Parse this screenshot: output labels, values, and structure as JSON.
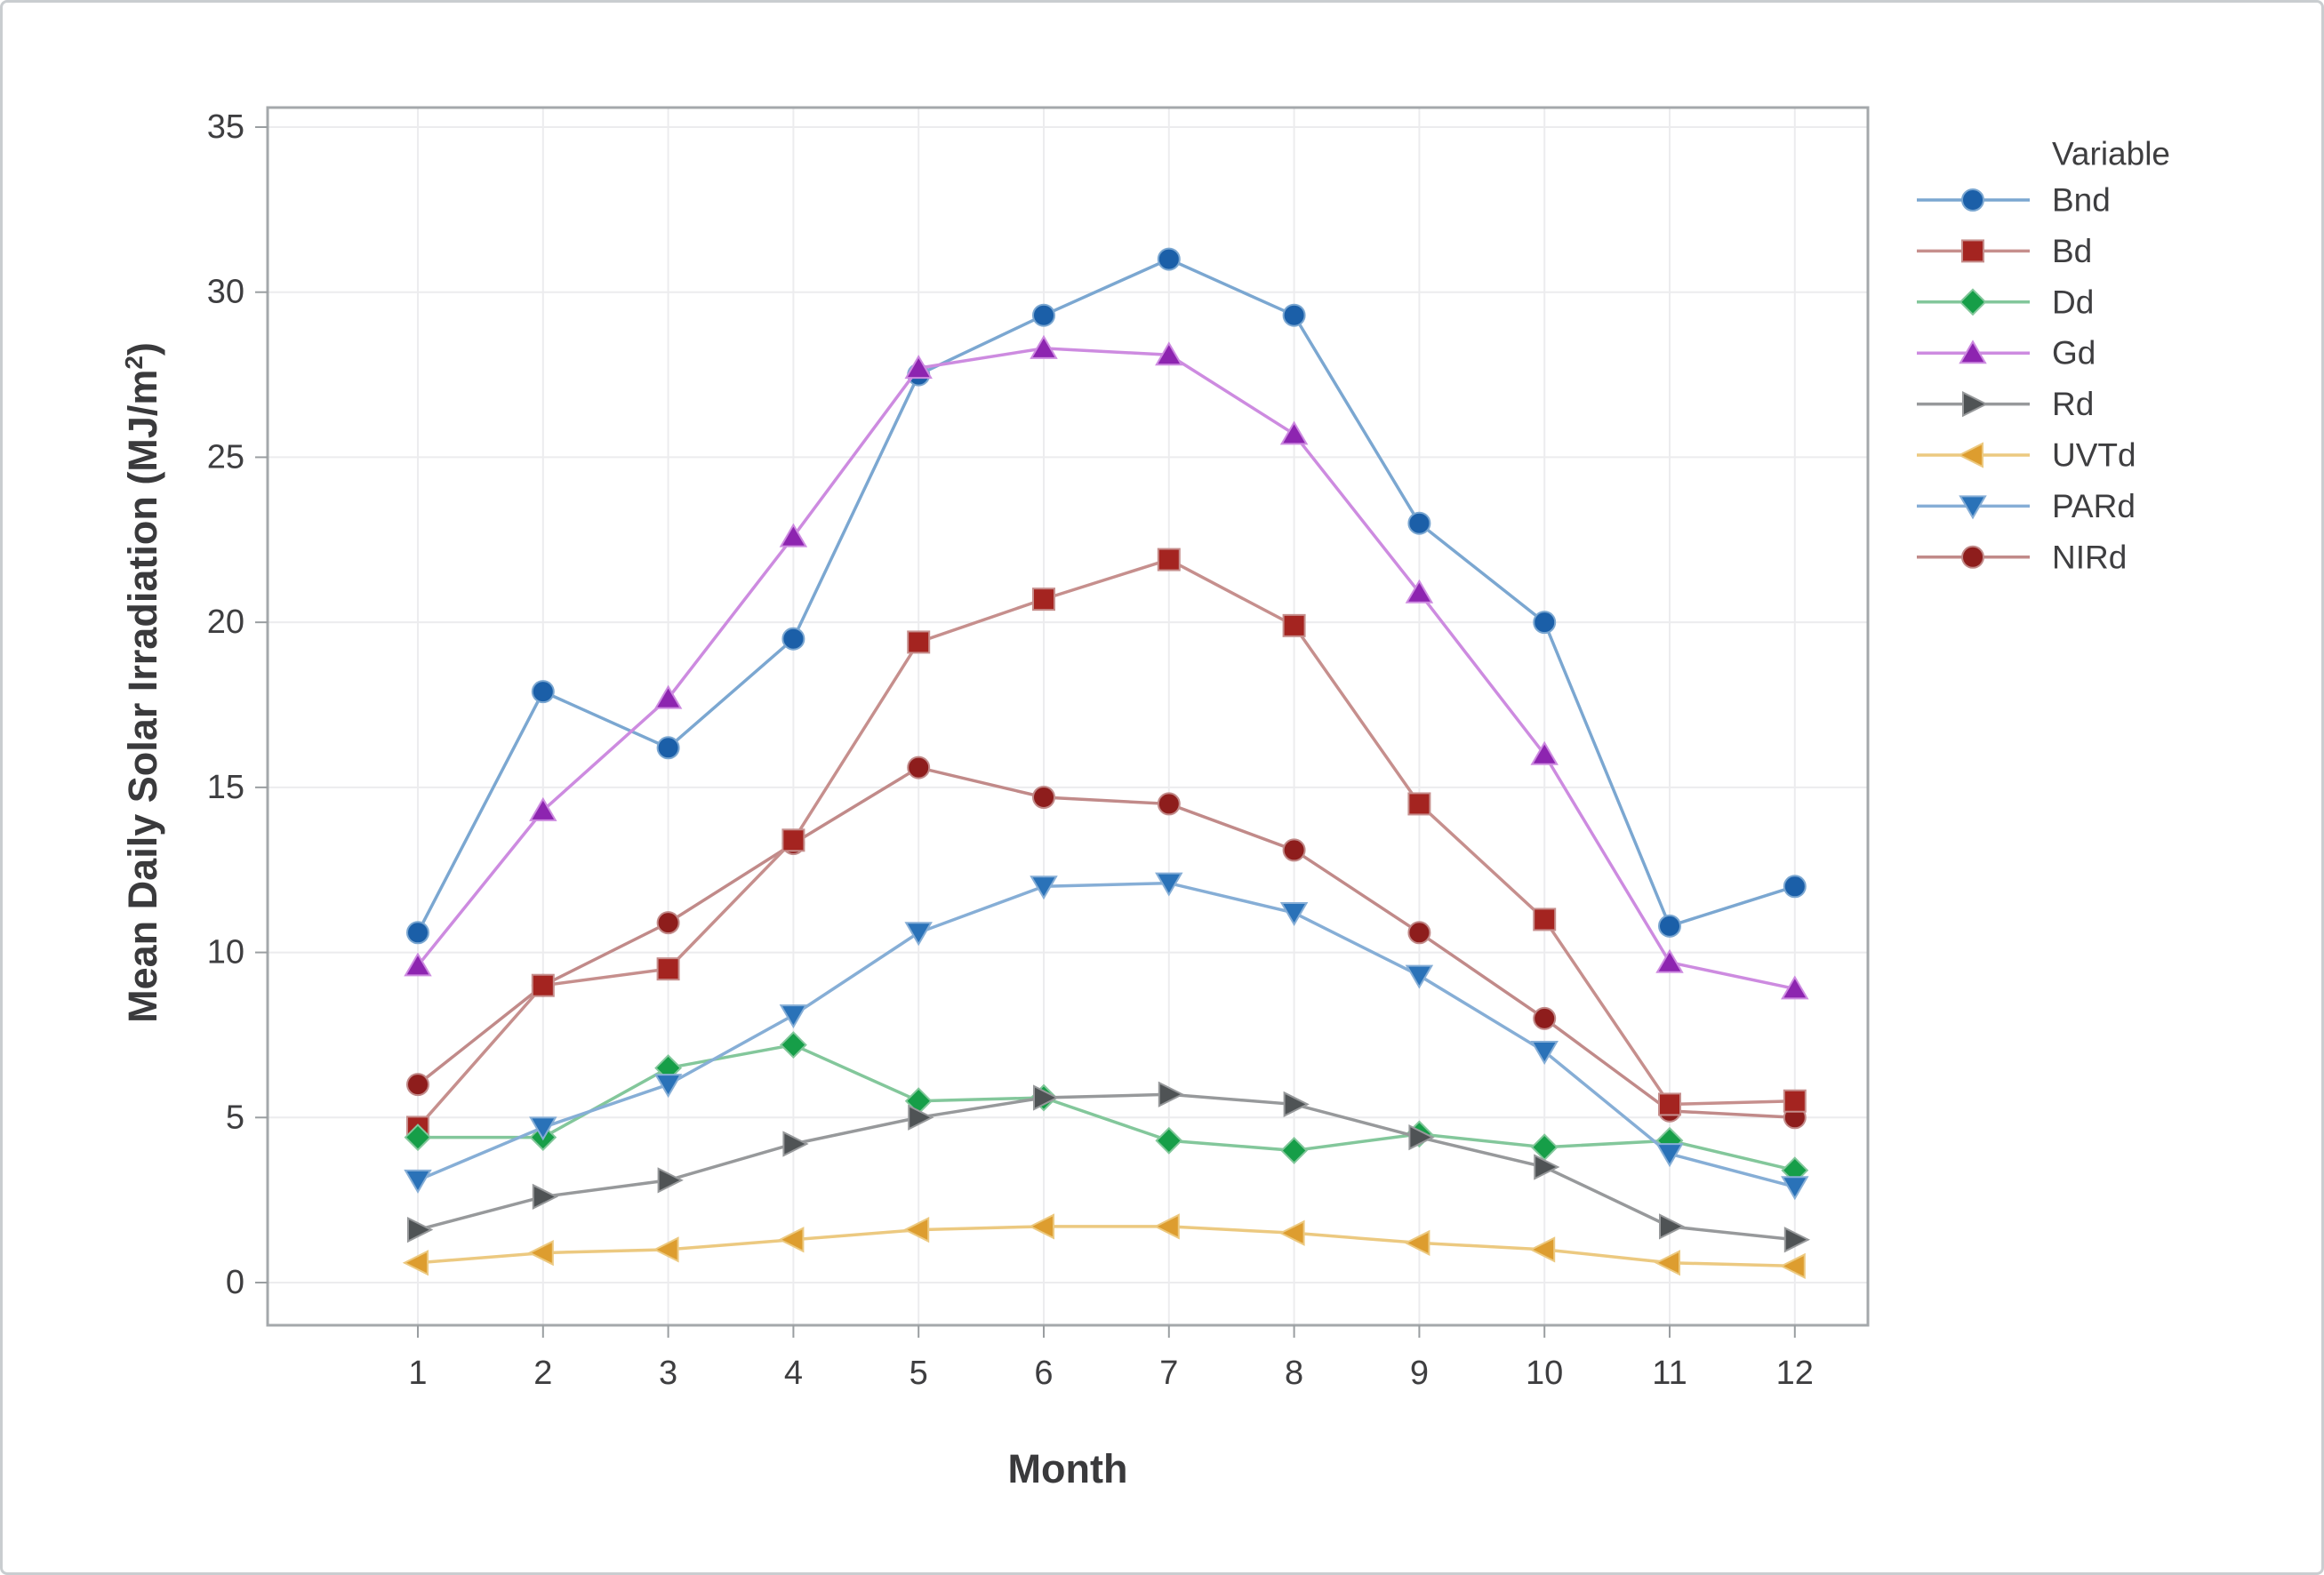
{
  "page": {
    "background": "#ffffff",
    "border_color": "#c9cdd0",
    "text_color": "#3e3e40",
    "grid_color": "#ececee",
    "frame_color": "#a4a8ab",
    "tick_color": "#9a9ea1"
  },
  "chart_data": {
    "type": "line",
    "title": "",
    "xlabel": "Month",
    "ylabel_main": "Mean Daily Solar Irradiation (MJ/m",
    "ylabel_sup": "2",
    "ylabel_suffix": ")",
    "legend_title": "Variable",
    "legend_position": "right",
    "grid": true,
    "x": [
      1,
      2,
      3,
      4,
      5,
      6,
      7,
      8,
      9,
      10,
      11,
      12
    ],
    "xlim": [
      1,
      12
    ],
    "ylim": [
      0,
      35
    ],
    "yticks": [
      0,
      5,
      10,
      15,
      20,
      25,
      30,
      35
    ],
    "series": [
      {
        "name": "Bnd",
        "marker": "circle",
        "color": "#1b5fa8",
        "line_color": "#7ba7d1",
        "values": [
          10.6,
          17.9,
          16.2,
          19.5,
          27.5,
          29.3,
          31.0,
          29.3,
          23.0,
          20.0,
          10.8,
          12.0
        ]
      },
      {
        "name": "Bd",
        "marker": "square",
        "color": "#a42420",
        "line_color": "#c68f8d",
        "values": [
          4.7,
          9.0,
          9.5,
          13.4,
          19.4,
          20.7,
          21.9,
          19.9,
          14.5,
          11.0,
          5.4,
          5.5
        ]
      },
      {
        "name": "Dd",
        "marker": "diamond",
        "color": "#169e48",
        "line_color": "#83c79b",
        "values": [
          4.4,
          4.4,
          6.5,
          7.2,
          5.5,
          5.6,
          4.3,
          4.0,
          4.5,
          4.1,
          4.3,
          3.4
        ]
      },
      {
        "name": "Gd",
        "marker": "triangle-up",
        "color": "#8d24b0",
        "line_color": "#cd8be0",
        "values": [
          9.6,
          14.3,
          17.7,
          22.6,
          27.7,
          28.3,
          28.1,
          25.7,
          20.9,
          16.0,
          9.7,
          8.9
        ]
      },
      {
        "name": "Rd",
        "marker": "triangle-right",
        "color": "#4f5355",
        "line_color": "#97999b",
        "values": [
          1.6,
          2.6,
          3.1,
          4.2,
          5.0,
          5.6,
          5.7,
          5.4,
          4.4,
          3.5,
          1.7,
          1.3
        ]
      },
      {
        "name": "UVTd",
        "marker": "triangle-left",
        "color": "#dd9d2f",
        "line_color": "#ecc980",
        "values": [
          0.6,
          0.9,
          1.0,
          1.3,
          1.6,
          1.7,
          1.7,
          1.5,
          1.2,
          1.0,
          0.6,
          0.5
        ]
      },
      {
        "name": "PARd",
        "marker": "triangle-down",
        "color": "#2a72b8",
        "line_color": "#86aed6",
        "values": [
          3.1,
          4.7,
          6.0,
          8.1,
          10.6,
          12.0,
          12.1,
          11.2,
          9.3,
          7.0,
          3.9,
          2.9
        ]
      },
      {
        "name": "NIRd",
        "marker": "circle",
        "color": "#8e1d1c",
        "line_color": "#c18a89",
        "values": [
          6.0,
          9.0,
          10.9,
          13.3,
          15.6,
          14.7,
          14.5,
          13.1,
          10.6,
          8.0,
          5.2,
          5.0
        ]
      }
    ]
  }
}
